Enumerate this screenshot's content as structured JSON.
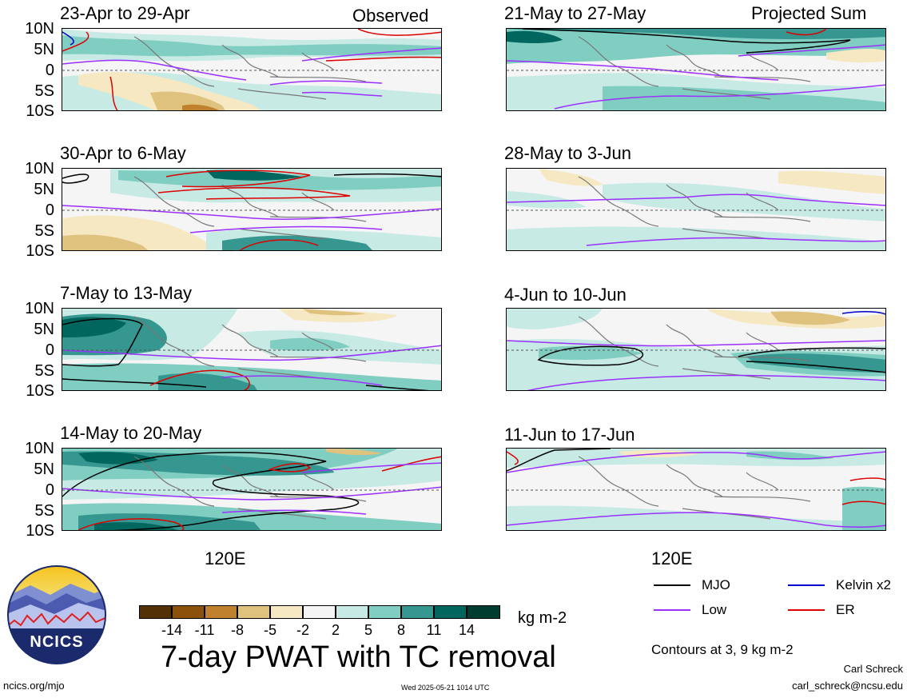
{
  "panels_left": [
    {
      "title": "23-Apr to 29-Apr"
    },
    {
      "title": "30-Apr to 6-May"
    },
    {
      "title": "7-May to 13-May"
    },
    {
      "title": "14-May to 20-May"
    }
  ],
  "panels_right": [
    {
      "title": "21-May to 27-May"
    },
    {
      "title": "28-May to 3-Jun"
    },
    {
      "title": "4-Jun to 10-Jun"
    },
    {
      "title": "11-Jun to 17-Jun"
    }
  ],
  "column_labels": {
    "left": "Observed",
    "right": "Projected Sum"
  },
  "y_ticks": [
    "10N",
    "5N",
    "0",
    "5S",
    "10S"
  ],
  "x_tick": "120E",
  "colorbar": {
    "ticks": [
      "-14",
      "-11",
      "-8",
      "-5",
      "-2",
      "2",
      "5",
      "8",
      "11",
      "14"
    ],
    "unit": "kg m-2",
    "colors": [
      "#543005",
      "#8c510a",
      "#bf812d",
      "#dfc27d",
      "#f6e8c3",
      "#f5f5f5",
      "#c7eae5",
      "#80cdc1",
      "#35978f",
      "#01665e",
      "#003c30"
    ]
  },
  "legend": {
    "mjo": "MJO",
    "low": "Low",
    "kelvin": "Kelvin x2",
    "er": "ER",
    "colors": {
      "mjo": "#000000",
      "low": "#9b30ff",
      "kelvin": "#0000cd",
      "er": "#dd0000"
    }
  },
  "main_title": "7-day PWAT with TC removal",
  "contours_note": "Contours at 3, 9 kg m-2",
  "footer": {
    "site": "ncics.org/mjo",
    "timestamp": "Wed 2025-05-21 1014 UTC",
    "author": "Carl Schreck",
    "email": "carl_schreck@ncsu.edu"
  },
  "logo_text": "NCICS"
}
